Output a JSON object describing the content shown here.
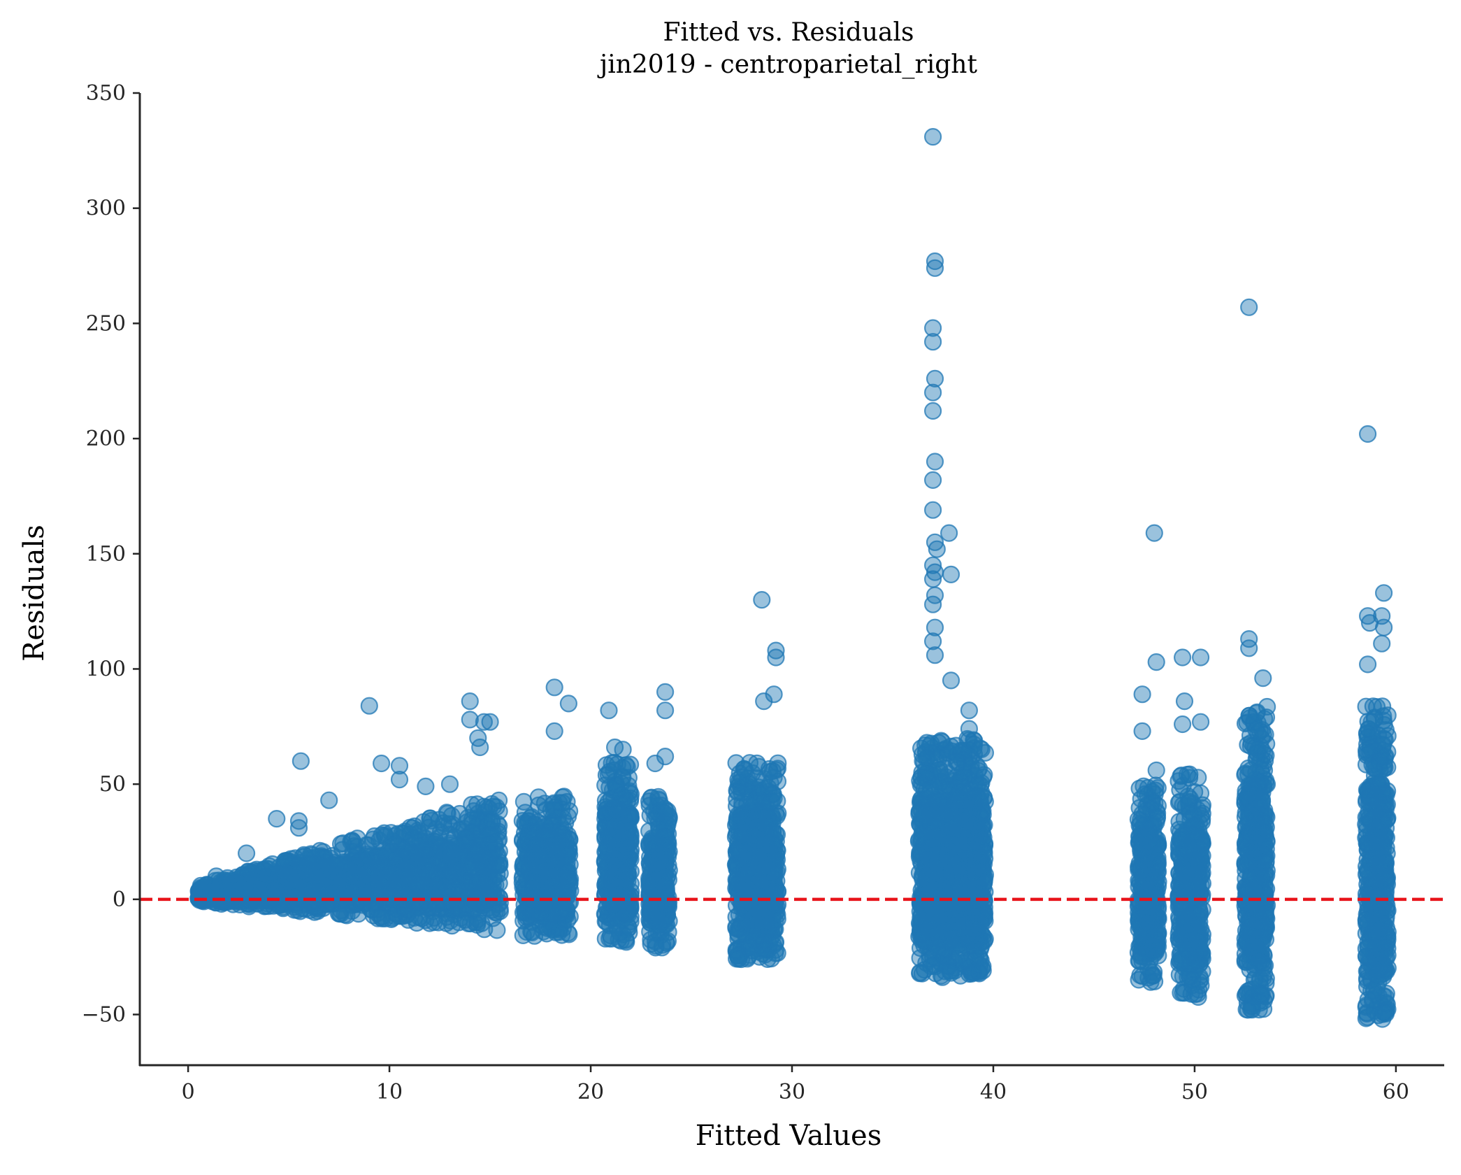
{
  "chart_data": {
    "type": "scatter",
    "title": "Fitted vs. Residuals",
    "subtitle": "jin2019 - centroparietal_right",
    "xlabel": "Fitted Values",
    "ylabel": "Residuals",
    "xlim": [
      -2.4,
      62.4
    ],
    "ylim": [
      -72,
      350
    ],
    "xticks": [
      0,
      10,
      20,
      30,
      40,
      50,
      60
    ],
    "yticks": [
      -50,
      0,
      50,
      100,
      150,
      200,
      250,
      300,
      350
    ],
    "xtick_labels": [
      "0",
      "10",
      "20",
      "30",
      "40",
      "50",
      "60"
    ],
    "ytick_labels": [
      "−50",
      "0",
      "50",
      "100",
      "150",
      "200",
      "250",
      "300",
      "350"
    ],
    "grid": false,
    "legend": "none",
    "reference_line": {
      "y": 0,
      "style": "dashed",
      "color": "#e8141b"
    },
    "marker_color": "#1f77b4",
    "marker_alpha": 0.5,
    "clusters": [
      {
        "x": [
          0.5,
          15.5
        ],
        "y_min_start": -1,
        "y_min_end": -14,
        "y_max_start": 6,
        "y_max_end": 45,
        "count": 1800
      },
      {
        "x": [
          16.6,
          19.0
        ],
        "y_min": -17,
        "y_max": 45,
        "count": 450
      },
      {
        "x": [
          20.7,
          22.0
        ],
        "y_min": -19,
        "y_max": 60,
        "count": 400
      },
      {
        "x": [
          22.9,
          23.9
        ],
        "y_min": -21,
        "y_max": 45,
        "count": 320
      },
      {
        "x": [
          27.2,
          29.3
        ],
        "y_min": -26,
        "y_max": 60,
        "count": 700
      },
      {
        "x": [
          36.3,
          39.6
        ],
        "y_min": -34,
        "y_max": 70,
        "count": 1300
      },
      {
        "x": [
          47.2,
          48.2
        ],
        "y_min": -37,
        "y_max": 50,
        "count": 380
      },
      {
        "x": [
          49.2,
          50.4
        ],
        "y_min": -43,
        "y_max": 55,
        "count": 420
      },
      {
        "x": [
          52.5,
          53.6
        ],
        "y_min": -48,
        "y_max": 85,
        "count": 520
      },
      {
        "x": [
          58.5,
          59.6
        ],
        "y_min": -52,
        "y_max": 85,
        "count": 540
      }
    ],
    "outliers": [
      {
        "x": 37.0,
        "y": 331
      },
      {
        "x": 37.1,
        "y": 277
      },
      {
        "x": 37.1,
        "y": 274
      },
      {
        "x": 37.0,
        "y": 248
      },
      {
        "x": 37.0,
        "y": 242
      },
      {
        "x": 37.1,
        "y": 226
      },
      {
        "x": 37.0,
        "y": 220
      },
      {
        "x": 37.0,
        "y": 212
      },
      {
        "x": 37.1,
        "y": 190
      },
      {
        "x": 37.0,
        "y": 182
      },
      {
        "x": 37.0,
        "y": 169
      },
      {
        "x": 37.8,
        "y": 159
      },
      {
        "x": 37.1,
        "y": 155
      },
      {
        "x": 37.2,
        "y": 152
      },
      {
        "x": 37.0,
        "y": 145
      },
      {
        "x": 37.1,
        "y": 142
      },
      {
        "x": 37.9,
        "y": 141
      },
      {
        "x": 37.0,
        "y": 139
      },
      {
        "x": 37.1,
        "y": 132
      },
      {
        "x": 37.0,
        "y": 128
      },
      {
        "x": 37.1,
        "y": 118
      },
      {
        "x": 37.0,
        "y": 112
      },
      {
        "x": 37.1,
        "y": 106
      },
      {
        "x": 37.9,
        "y": 95
      },
      {
        "x": 52.7,
        "y": 257
      },
      {
        "x": 58.6,
        "y": 202
      },
      {
        "x": 48.0,
        "y": 159
      },
      {
        "x": 59.4,
        "y": 133
      },
      {
        "x": 28.5,
        "y": 130
      },
      {
        "x": 58.6,
        "y": 123
      },
      {
        "x": 59.3,
        "y": 123
      },
      {
        "x": 58.7,
        "y": 120
      },
      {
        "x": 59.4,
        "y": 118
      },
      {
        "x": 52.7,
        "y": 113
      },
      {
        "x": 59.3,
        "y": 111
      },
      {
        "x": 52.7,
        "y": 109
      },
      {
        "x": 29.2,
        "y": 108
      },
      {
        "x": 29.2,
        "y": 105
      },
      {
        "x": 49.4,
        "y": 105
      },
      {
        "x": 50.3,
        "y": 105
      },
      {
        "x": 48.1,
        "y": 103
      },
      {
        "x": 58.6,
        "y": 102
      },
      {
        "x": 53.4,
        "y": 96
      },
      {
        "x": 18.2,
        "y": 92
      },
      {
        "x": 23.7,
        "y": 90
      },
      {
        "x": 47.4,
        "y": 89
      },
      {
        "x": 29.1,
        "y": 89
      },
      {
        "x": 49.5,
        "y": 86
      },
      {
        "x": 14.0,
        "y": 86
      },
      {
        "x": 28.6,
        "y": 86
      },
      {
        "x": 18.9,
        "y": 85
      },
      {
        "x": 9.0,
        "y": 84
      },
      {
        "x": 38.8,
        "y": 82
      },
      {
        "x": 20.9,
        "y": 82
      },
      {
        "x": 23.7,
        "y": 82
      },
      {
        "x": 14.0,
        "y": 78
      },
      {
        "x": 50.3,
        "y": 77
      },
      {
        "x": 14.7,
        "y": 77
      },
      {
        "x": 15.0,
        "y": 77
      },
      {
        "x": 49.4,
        "y": 76
      },
      {
        "x": 38.8,
        "y": 74
      },
      {
        "x": 18.2,
        "y": 73
      },
      {
        "x": 47.4,
        "y": 73
      },
      {
        "x": 14.4,
        "y": 70
      },
      {
        "x": 14.5,
        "y": 66
      },
      {
        "x": 21.2,
        "y": 66
      },
      {
        "x": 21.6,
        "y": 65
      },
      {
        "x": 23.7,
        "y": 62
      },
      {
        "x": 5.6,
        "y": 60
      },
      {
        "x": 9.6,
        "y": 59
      },
      {
        "x": 10.5,
        "y": 58
      },
      {
        "x": 23.2,
        "y": 59
      },
      {
        "x": 39.5,
        "y": 53
      },
      {
        "x": 10.5,
        "y": 52
      },
      {
        "x": 13.0,
        "y": 50
      },
      {
        "x": 11.8,
        "y": 49
      },
      {
        "x": 7.0,
        "y": 43
      },
      {
        "x": 5.5,
        "y": 34
      },
      {
        "x": 4.4,
        "y": 35
      },
      {
        "x": 5.5,
        "y": 31
      },
      {
        "x": 2.9,
        "y": 20
      },
      {
        "x": 1.4,
        "y": 10
      },
      {
        "x": 48.1,
        "y": 56
      }
    ]
  }
}
